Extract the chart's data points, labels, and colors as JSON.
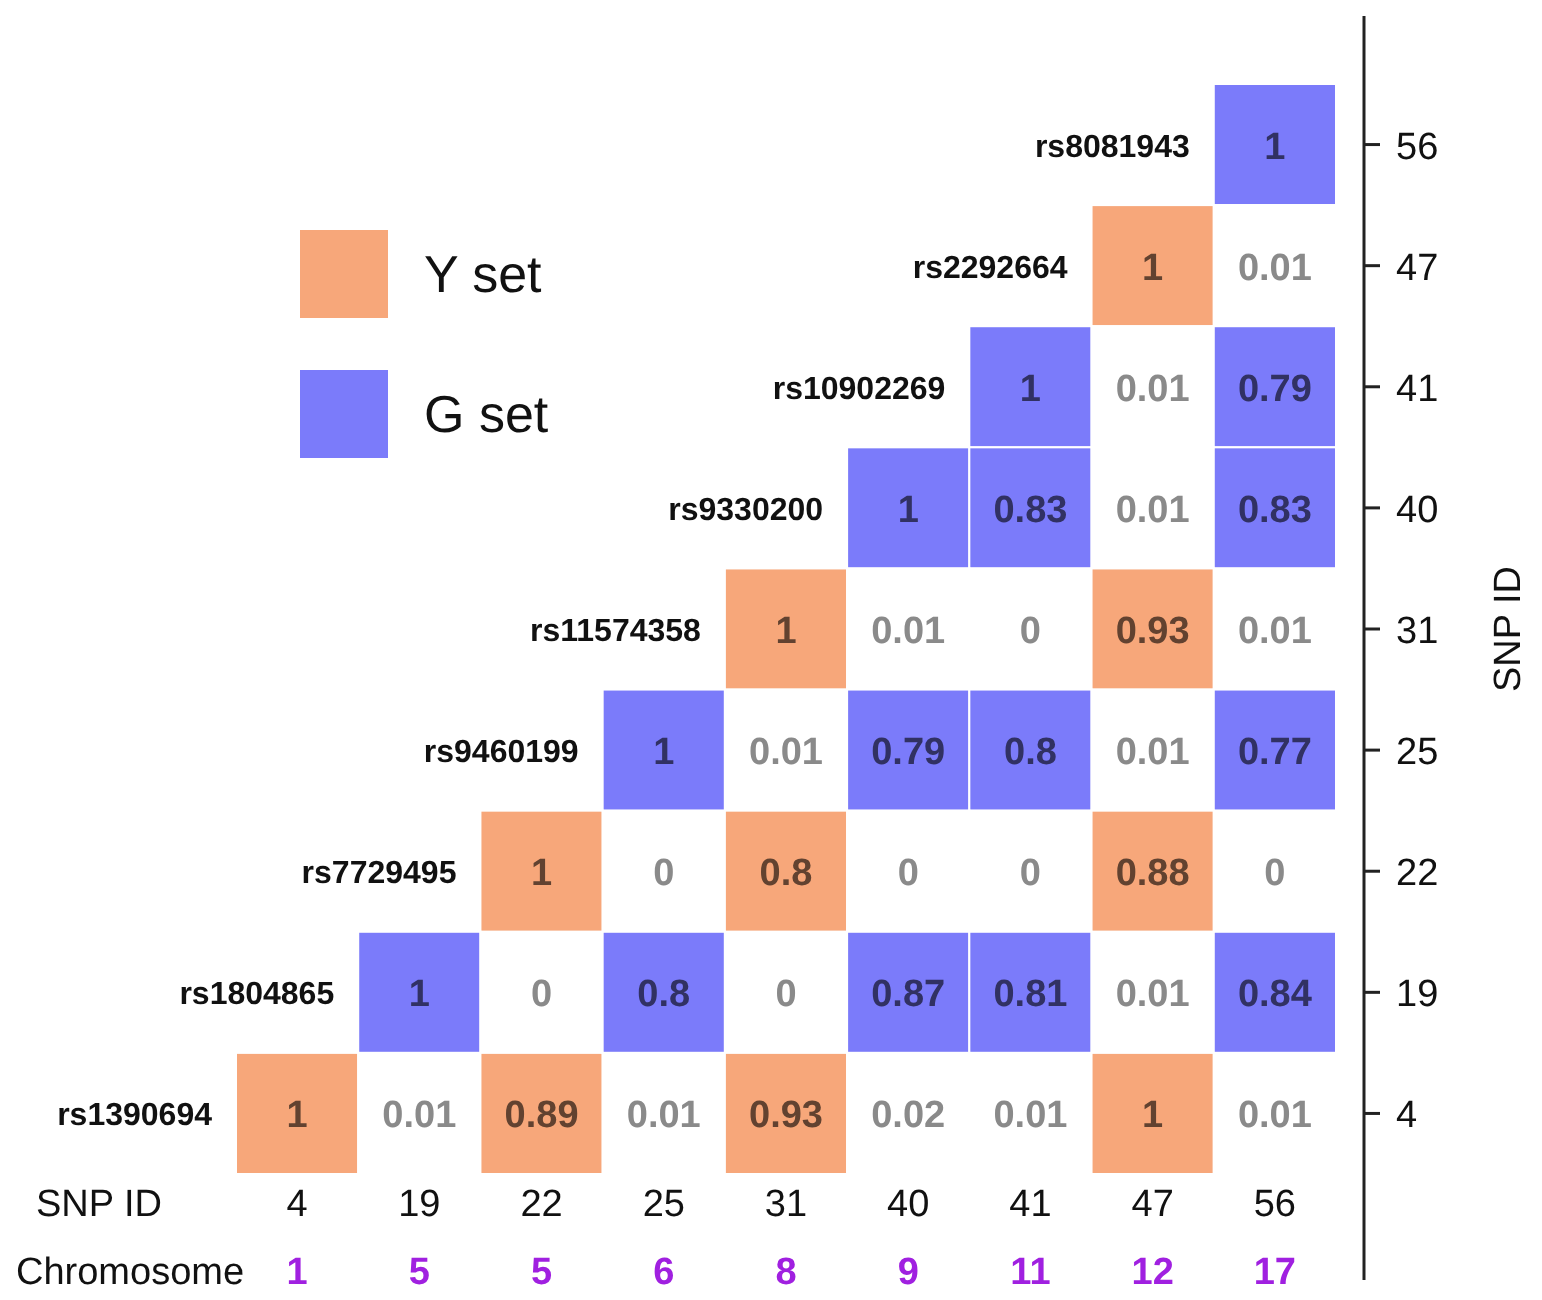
{
  "chart_data": {
    "type": "heatmap",
    "xlabel": "SNP ID",
    "ylabel": "SNP ID",
    "categories": [
      "4",
      "19",
      "22",
      "25",
      "31",
      "40",
      "41",
      "47",
      "56"
    ],
    "y_categories": [
      "56",
      "47",
      "41",
      "40",
      "31",
      "25",
      "22",
      "19",
      "4"
    ],
    "y2_categories": [
      "rs8081943",
      "rs2292664",
      "rs10902269",
      "rs9330200",
      "rs11574358",
      "rs9460199",
      "rs7729495",
      "rs1804865",
      "rs1390694"
    ],
    "cells": [
      [
        null,
        null,
        null,
        null,
        null,
        null,
        null,
        null,
        1
      ],
      [
        null,
        null,
        null,
        null,
        null,
        null,
        null,
        1,
        0.01
      ],
      [
        null,
        null,
        null,
        null,
        null,
        null,
        1,
        0.01,
        0.79
      ],
      [
        null,
        null,
        null,
        null,
        null,
        1,
        0.83,
        0.01,
        0.83
      ],
      [
        null,
        null,
        null,
        null,
        1,
        0.01,
        0,
        0.93,
        0.01
      ],
      [
        null,
        null,
        null,
        1,
        0.01,
        0.79,
        0.8,
        0.01,
        0.77
      ],
      [
        null,
        null,
        1,
        0,
        0.8,
        0,
        0,
        0.88,
        0
      ],
      [
        null,
        1,
        0,
        0.8,
        0,
        0.87,
        0.81,
        0.01,
        0.84
      ],
      [
        1,
        0.01,
        0.89,
        0.01,
        0.93,
        0.02,
        0.01,
        1,
        0.01
      ]
    ],
    "colors": [
      [
        null,
        null,
        null,
        null,
        null,
        null,
        null,
        null,
        "#7b7bfa"
      ],
      [
        null,
        null,
        null,
        null,
        null,
        null,
        null,
        "#f7a77a",
        null
      ],
      [
        null,
        null,
        null,
        null,
        null,
        null,
        "#7b7bfa",
        null,
        "#7b7bfa"
      ],
      [
        null,
        null,
        null,
        null,
        null,
        "#7b7bfa",
        "#7b7bfa",
        null,
        "#7b7bfa"
      ],
      [
        null,
        null,
        null,
        null,
        "#f7a77a",
        null,
        null,
        "#f7a77a",
        null
      ],
      [
        null,
        null,
        null,
        "#7b7bfa",
        null,
        "#7b7bfa",
        "#7b7bfa",
        null,
        "#7b7bfa"
      ],
      [
        null,
        null,
        "#f7a77a",
        null,
        "#f7a77a",
        null,
        null,
        "#f7a77a",
        null
      ],
      [
        null,
        "#7b7bfa",
        null,
        "#7b7bfa",
        null,
        "#7b7bfa",
        "#7b7bfa",
        null,
        "#7b7bfa"
      ],
      [
        "#f7a77a",
        null,
        "#f7a77a",
        null,
        "#f7a77a",
        null,
        null,
        "#f7a77a",
        null
      ]
    ],
    "series": [
      {
        "name": "Y set",
        "color": "#f7a77a",
        "values": [
          null,
          null,
          null,
          null,
          null,
          null,
          null,
          null,
          null
        ]
      },
      {
        "name": "G set",
        "color": "#7b7bfa",
        "values": [
          null,
          null,
          null,
          null,
          null,
          null,
          null,
          null,
          null
        ]
      }
    ],
    "legend": "top left",
    "data_labels": true,
    "annotations": [
      "Chromosome",
      "1",
      "5",
      "5",
      "6",
      "8",
      "9",
      "11",
      "12",
      "17"
    ]
  }
}
